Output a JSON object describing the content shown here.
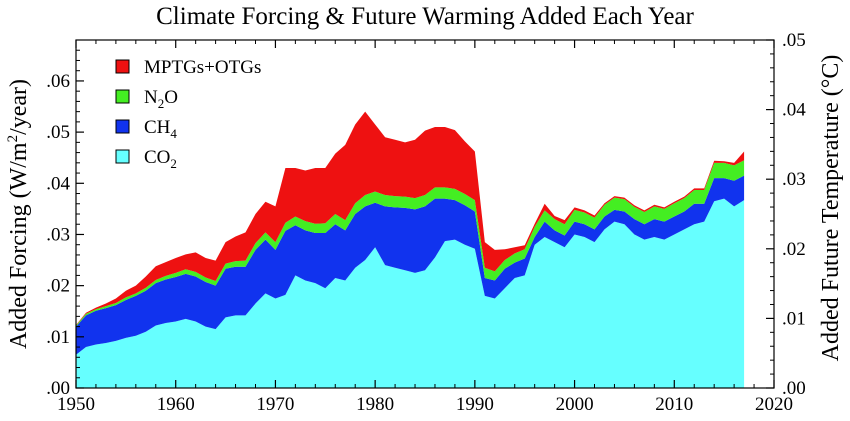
{
  "chart_data": {
    "type": "area",
    "stacked": true,
    "title": "Climate Forcing & Future Warming Added Each Year",
    "ylabel": {
      "text_before": "Added Forcing (W/m",
      "superscript": "2",
      "text_after": "/year)"
    },
    "y2label": "Added Future Temperature (°C)",
    "xlim": [
      1950,
      2020
    ],
    "ylim": [
      0,
      0.068
    ],
    "y2lim": [
      0,
      0.05
    ],
    "x_ticks": [
      {
        "value": 1950,
        "label": "1950"
      },
      {
        "value": 1960,
        "label": "1960"
      },
      {
        "value": 1970,
        "label": "1970"
      },
      {
        "value": 1980,
        "label": "1980"
      },
      {
        "value": 1990,
        "label": "1990"
      },
      {
        "value": 2000,
        "label": "2000"
      },
      {
        "value": 2010,
        "label": "2010"
      },
      {
        "value": 2020,
        "label": "2020"
      }
    ],
    "y_ticks": [
      {
        "value": 0.0,
        "label": ".00"
      },
      {
        "value": 0.01,
        "label": ".01"
      },
      {
        "value": 0.02,
        "label": ".02"
      },
      {
        "value": 0.03,
        "label": ".03"
      },
      {
        "value": 0.04,
        "label": ".04"
      },
      {
        "value": 0.05,
        "label": ".05"
      },
      {
        "value": 0.06,
        "label": ".06"
      }
    ],
    "y2_ticks": [
      {
        "value": 0.0,
        "label": ".00"
      },
      {
        "value": 0.01,
        "label": ".01"
      },
      {
        "value": 0.02,
        "label": ".02"
      },
      {
        "value": 0.03,
        "label": ".03"
      },
      {
        "value": 0.04,
        "label": ".04"
      },
      {
        "value": 0.05,
        "label": ".05"
      }
    ],
    "legend_position": "top-left",
    "x": [
      1950,
      1951,
      1952,
      1953,
      1954,
      1955,
      1956,
      1957,
      1958,
      1959,
      1960,
      1961,
      1962,
      1963,
      1964,
      1965,
      1966,
      1967,
      1968,
      1969,
      1970,
      1971,
      1972,
      1973,
      1974,
      1975,
      1976,
      1977,
      1978,
      1979,
      1980,
      1981,
      1982,
      1983,
      1984,
      1985,
      1986,
      1987,
      1988,
      1989,
      1990,
      1991,
      1992,
      1993,
      1994,
      1995,
      1996,
      1997,
      1998,
      1999,
      2000,
      2001,
      2002,
      2003,
      2004,
      2005,
      2006,
      2007,
      2008,
      2009,
      2010,
      2011,
      2012,
      2013,
      2014,
      2015,
      2016,
      2017
    ],
    "series": [
      {
        "name": "CO2",
        "label_main": "CO",
        "label_sub": "2",
        "color": "#66ffff",
        "values": [
          0.0065,
          0.008,
          0.0085,
          0.0088,
          0.0092,
          0.0098,
          0.0102,
          0.011,
          0.0122,
          0.0127,
          0.013,
          0.0135,
          0.013,
          0.012,
          0.0115,
          0.0138,
          0.0142,
          0.0142,
          0.0165,
          0.0185,
          0.0175,
          0.0182,
          0.022,
          0.021,
          0.0205,
          0.0195,
          0.0215,
          0.021,
          0.0235,
          0.025,
          0.0275,
          0.024,
          0.0235,
          0.023,
          0.0225,
          0.023,
          0.0255,
          0.0287,
          0.029,
          0.028,
          0.0272,
          0.018,
          0.0175,
          0.0195,
          0.0215,
          0.022,
          0.028,
          0.0295,
          0.0285,
          0.0275,
          0.03,
          0.0295,
          0.0285,
          0.031,
          0.0325,
          0.032,
          0.03,
          0.029,
          0.0295,
          0.029,
          0.03,
          0.031,
          0.032,
          0.0325,
          0.0365,
          0.037,
          0.0355,
          0.0367
        ]
      },
      {
        "name": "CH4",
        "label_main": "CH",
        "label_sub": "4",
        "color": "#1133ee",
        "values": [
          0.0055,
          0.0062,
          0.0066,
          0.0068,
          0.007,
          0.0074,
          0.0078,
          0.008,
          0.0083,
          0.0085,
          0.0087,
          0.0088,
          0.0088,
          0.0087,
          0.0085,
          0.0095,
          0.0095,
          0.0095,
          0.0105,
          0.0105,
          0.0095,
          0.0125,
          0.0098,
          0.0098,
          0.0098,
          0.0108,
          0.0105,
          0.0098,
          0.0105,
          0.0105,
          0.0087,
          0.0115,
          0.0118,
          0.0122,
          0.0124,
          0.0125,
          0.0115,
          0.0083,
          0.0077,
          0.0077,
          0.0073,
          0.0035,
          0.0035,
          0.0038,
          0.003,
          0.0033,
          0.0015,
          0.003,
          0.0023,
          0.0023,
          0.0025,
          0.0025,
          0.0025,
          0.0025,
          0.0023,
          0.0025,
          0.003,
          0.003,
          0.0035,
          0.0035,
          0.0035,
          0.0035,
          0.004,
          0.0035,
          0.0045,
          0.004,
          0.005,
          0.0048
        ]
      },
      {
        "name": "N2O",
        "label_main": "N",
        "label_sub": "2",
        "label_tail": "O",
        "color": "#44ee22",
        "values": [
          0.0002,
          0.0003,
          0.0003,
          0.0004,
          0.0004,
          0.0005,
          0.0005,
          0.0006,
          0.0006,
          0.0007,
          0.0008,
          0.0009,
          0.0009,
          0.0009,
          0.0009,
          0.001,
          0.0011,
          0.0012,
          0.0013,
          0.0014,
          0.0015,
          0.0016,
          0.0017,
          0.0018,
          0.0018,
          0.0019,
          0.002,
          0.002,
          0.0021,
          0.0022,
          0.0022,
          0.0022,
          0.0022,
          0.0022,
          0.0022,
          0.0022,
          0.0022,
          0.0022,
          0.0022,
          0.0022,
          0.0022,
          0.002,
          0.0018,
          0.0017,
          0.0018,
          0.0018,
          0.002,
          0.0022,
          0.0022,
          0.0022,
          0.0023,
          0.0023,
          0.0023,
          0.0023,
          0.0024,
          0.0024,
          0.0024,
          0.0024,
          0.0025,
          0.0025,
          0.0026,
          0.0026,
          0.0027,
          0.0027,
          0.003,
          0.003,
          0.003,
          0.003
        ]
      },
      {
        "name": "MPTGs+OTGs",
        "label_main": "MPTGs+OTGs",
        "color": "#ee1111",
        "values": [
          0.0001,
          0.0002,
          0.0003,
          0.0005,
          0.0009,
          0.0013,
          0.0015,
          0.0022,
          0.0027,
          0.0027,
          0.0029,
          0.0029,
          0.0038,
          0.0038,
          0.004,
          0.0042,
          0.0048,
          0.0055,
          0.0057,
          0.006,
          0.007,
          0.0107,
          0.0095,
          0.0099,
          0.0109,
          0.0108,
          0.0118,
          0.0147,
          0.0154,
          0.0163,
          0.0131,
          0.0113,
          0.011,
          0.0106,
          0.0114,
          0.0126,
          0.0118,
          0.0118,
          0.0115,
          0.0103,
          0.0095,
          0.005,
          0.0042,
          0.0021,
          0.0012,
          0.0008,
          0.0006,
          0.0013,
          0.0006,
          0.0008,
          0.0005,
          0.0004,
          0.0004,
          0.0003,
          0.0003,
          0.0003,
          0.0003,
          0.0003,
          0.0003,
          0.0003,
          0.0003,
          0.0003,
          0.0003,
          0.0003,
          0.0004,
          0.0003,
          0.0005,
          0.0017
        ]
      }
    ]
  }
}
